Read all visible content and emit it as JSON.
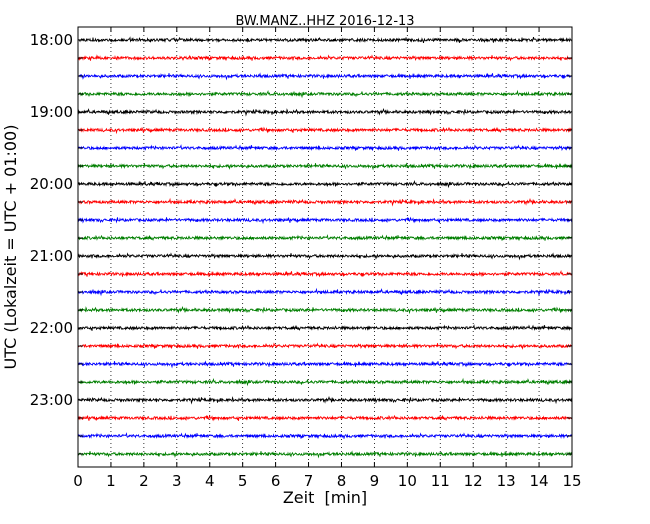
{
  "chart_data": {
    "type": "line",
    "title": "BW.MANZ..HHZ 2016-12-13",
    "xlabel": "Zeit  [min]",
    "ylabel": "UTC (Lokalzeit = UTC + 01:00)",
    "xlim": [
      0,
      15
    ],
    "x_ticks": [
      "0",
      "1",
      "2",
      "3",
      "4",
      "5",
      "6",
      "7",
      "8",
      "9",
      "10",
      "11",
      "12",
      "13",
      "14",
      "15"
    ],
    "y_tick_labels": [
      "18:00",
      "19:00",
      "20:00",
      "21:00",
      "22:00",
      "23:00"
    ],
    "grid": "vertical dotted lines at each minute",
    "color_cycle": [
      "#000000",
      "#ff0000",
      "#0000ff",
      "#007f00"
    ],
    "trace_start_times": [
      "18:00",
      "18:15",
      "18:30",
      "18:45",
      "19:00",
      "19:15",
      "19:30",
      "19:45",
      "20:00",
      "20:15",
      "20:30",
      "20:45",
      "21:00",
      "21:15",
      "21:30",
      "21:45",
      "22:00",
      "22:15",
      "22:30",
      "22:45",
      "23:00",
      "23:15",
      "23:30",
      "23:45"
    ]
  }
}
